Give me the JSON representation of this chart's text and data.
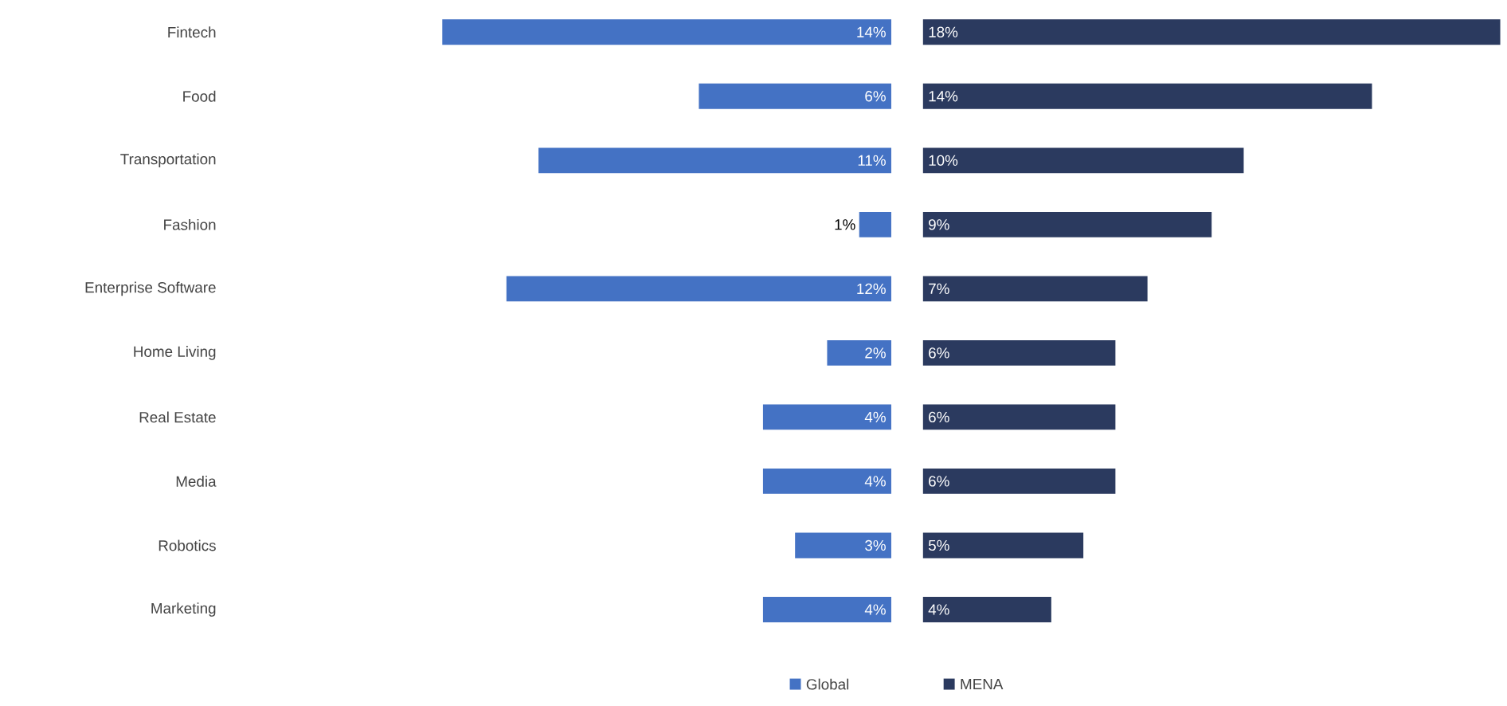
{
  "chart_data": [
    {
      "type": "bar",
      "orientation": "horizontal",
      "categories": [
        "Fintech",
        "Food",
        "Transportation",
        "Fashion",
        "Enterprise Software",
        "Home Living",
        "Real Estate",
        "Media",
        "Robotics",
        "Marketing"
      ],
      "series": [
        {
          "name": "Global",
          "color": "#4472c4",
          "values": [
            14,
            6,
            11,
            1,
            12,
            2,
            4,
            4,
            3,
            4
          ],
          "value_labels": [
            "14%",
            "6%",
            "11%",
            "1%",
            "12%",
            "2%",
            "4%",
            "4%",
            "3%",
            "4%"
          ]
        }
      ],
      "tick_labels": "y",
      "legend": "bottom"
    },
    {
      "type": "bar",
      "orientation": "horizontal",
      "categories": [
        null,
        null,
        null,
        null,
        null,
        null,
        null,
        null,
        null,
        null
      ],
      "series": [
        {
          "name": "MENA",
          "color": "#2b3a5f",
          "values": [
            18,
            14,
            10,
            9,
            7,
            6,
            6,
            6,
            5,
            4
          ],
          "value_labels": [
            "18%",
            "14%",
            "10%",
            "9%",
            "7%",
            "6%",
            "6%",
            "6%",
            "5%",
            "4%"
          ]
        }
      ],
      "tick_labels": false,
      "legend": "bottom"
    }
  ]
}
